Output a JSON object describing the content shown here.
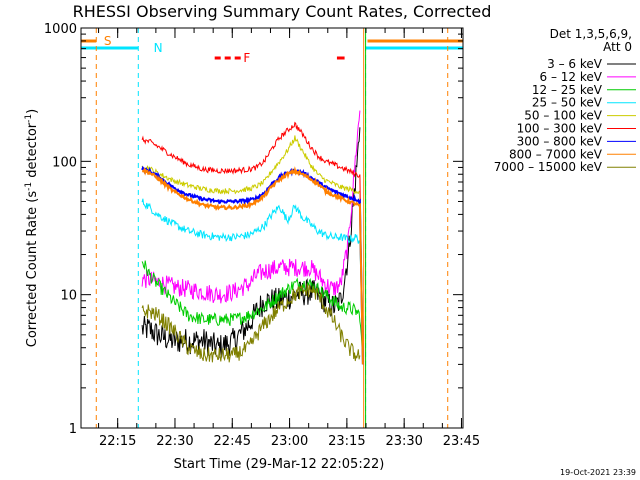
{
  "chart_data": {
    "type": "line",
    "title": "RHESSI Observing Summary Count Rates, Corrected",
    "xlabel": "Start Time (29-Mar-12 22:05:22)",
    "ylabel": "Corrected Count Rate (s⁻¹ detector⁻¹)",
    "ylabel_parts": {
      "main": "Corrected Count Rate (s",
      "sup1": "-1",
      "mid": " detector",
      "sup2": "-1",
      "end": ")"
    },
    "yscale": "log",
    "ylim": [
      1,
      1000
    ],
    "xlim_minutes": [
      0,
      100
    ],
    "x_unit": "minutes since 22:05:22",
    "y_ticks": [
      {
        "v": 1,
        "label": "1"
      },
      {
        "v": 10,
        "label": "10"
      },
      {
        "v": 100,
        "label": "100"
      },
      {
        "v": 1000,
        "label": "1000"
      }
    ],
    "x_ticks": [
      {
        "t": 9.6,
        "label": "22:15"
      },
      {
        "t": 24.6,
        "label": "22:30"
      },
      {
        "t": 39.6,
        "label": "22:45"
      },
      {
        "t": 54.6,
        "label": "23:00"
      },
      {
        "t": 69.6,
        "label": "23:15"
      },
      {
        "t": 84.6,
        "label": "23:30"
      },
      {
        "t": 99.6,
        "label": "23:45"
      }
    ],
    "legend_title": [
      "Det 1,3,5,6,9,",
      "Att 0"
    ],
    "series": [
      {
        "name": "3 - 6 keV",
        "label": "3 – 6 keV",
        "color": "#000000",
        "x": [
          16,
          18,
          20,
          24,
          28,
          32,
          36,
          40,
          44,
          46,
          48,
          52,
          56,
          60,
          62,
          64,
          66,
          68,
          70,
          72,
          73
        ],
        "values": [
          5.5,
          5.5,
          5,
          4.5,
          4.5,
          4.5,
          4,
          4.5,
          6,
          7.5,
          9,
          9,
          10,
          10.5,
          10,
          9,
          8,
          9,
          20,
          80,
          180
        ]
      },
      {
        "name": "6 - 12 keV",
        "label": "6 – 12 keV",
        "color": "#ff00ff",
        "x": [
          16,
          18,
          20,
          24,
          28,
          32,
          36,
          40,
          44,
          46,
          48,
          52,
          56,
          60,
          62,
          64,
          66,
          68,
          70,
          72,
          73
        ],
        "values": [
          13,
          13,
          12.5,
          11.5,
          11,
          10.5,
          10,
          10.5,
          12,
          14,
          15,
          16,
          16,
          16,
          14,
          12,
          11,
          12,
          25,
          120,
          240
        ]
      },
      {
        "name": "12 - 25 keV",
        "label": "12 – 25 keV",
        "color": "#00cc00",
        "x": [
          16,
          18,
          20,
          24,
          28,
          32,
          36,
          40,
          44,
          46,
          48,
          52,
          56,
          60,
          62,
          64,
          66,
          68,
          70,
          72,
          73,
          73.8
        ],
        "values": [
          18,
          14,
          12,
          9,
          7,
          6.5,
          6.5,
          6.5,
          7,
          7.5,
          8,
          10,
          12,
          12,
          11,
          10,
          9,
          8,
          8,
          7.5,
          7,
          3
        ]
      },
      {
        "name": "25 - 50 keV",
        "label": "25 – 50 keV",
        "color": "#00e5ff",
        "x": [
          16,
          18,
          20,
          24,
          28,
          32,
          36,
          40,
          44,
          46,
          48,
          50,
          52,
          54,
          56,
          58,
          60,
          62,
          64,
          66,
          68,
          70,
          72,
          73,
          73.8
        ],
        "values": [
          50,
          45,
          40,
          34,
          30,
          28,
          27,
          27,
          28,
          30,
          33,
          40,
          46,
          36,
          46,
          38,
          34,
          30,
          28,
          27,
          27,
          26,
          27,
          25,
          3
        ]
      },
      {
        "name": "50 - 100 keV",
        "label": "50 – 100 keV",
        "color": "#cccc00",
        "x": [
          16,
          18,
          20,
          24,
          28,
          32,
          36,
          40,
          44,
          46,
          48,
          50,
          52,
          54,
          56,
          58,
          60,
          62,
          64,
          66,
          68,
          70,
          72,
          73,
          73.8
        ],
        "values": [
          92,
          88,
          82,
          72,
          66,
          62,
          60,
          60,
          62,
          65,
          70,
          85,
          100,
          120,
          150,
          120,
          95,
          80,
          72,
          68,
          64,
          62,
          60,
          58,
          3
        ]
      },
      {
        "name": "100 - 300 keV",
        "label": "100 – 300 keV",
        "color": "#ff0000",
        "x": [
          16,
          18,
          20,
          24,
          28,
          32,
          36,
          40,
          44,
          46,
          48,
          50,
          52,
          54,
          56,
          58,
          60,
          62,
          64,
          66,
          68,
          70,
          72,
          73,
          73.8
        ],
        "values": [
          145,
          140,
          130,
          110,
          95,
          87,
          85,
          85,
          87,
          90,
          100,
          125,
          150,
          170,
          190,
          160,
          130,
          110,
          100,
          95,
          90,
          85,
          80,
          78,
          3
        ]
      },
      {
        "name": "300 - 800 keV",
        "label": "300 – 800 keV",
        "color": "#0000ff",
        "x": [
          16,
          18,
          20,
          24,
          28,
          32,
          36,
          40,
          44,
          46,
          48,
          50,
          52,
          54,
          56,
          58,
          60,
          62,
          64,
          66,
          68,
          70,
          72,
          73,
          73.8
        ],
        "values": [
          88,
          84,
          78,
          64,
          56,
          52,
          50,
          50,
          51,
          53,
          58,
          68,
          76,
          82,
          85,
          82,
          76,
          70,
          64,
          60,
          57,
          54,
          52,
          50,
          3
        ]
      },
      {
        "name": "800 - 7000 keV",
        "label": "800 – 7000 keV",
        "color": "#ff8000",
        "x": [
          16,
          18,
          20,
          24,
          28,
          32,
          36,
          40,
          44,
          46,
          48,
          50,
          52,
          54,
          56,
          58,
          60,
          62,
          64,
          66,
          68,
          70,
          72,
          73,
          73.8
        ],
        "values": [
          86,
          82,
          75,
          60,
          52,
          47,
          45,
          45,
          47,
          50,
          55,
          65,
          73,
          80,
          84,
          80,
          74,
          68,
          60,
          56,
          53,
          50,
          48,
          46,
          3
        ]
      },
      {
        "name": "7000 - 15000 keV",
        "label": "7000 – 15000 keV",
        "color": "#808000",
        "x": [
          16,
          18,
          20,
          24,
          28,
          32,
          36,
          40,
          44,
          46,
          48,
          52,
          56,
          60,
          62,
          64,
          66,
          68,
          70,
          72,
          73
        ],
        "values": [
          7.5,
          7.5,
          7,
          5.5,
          4,
          3.5,
          3.5,
          3.5,
          4,
          5,
          6,
          8,
          10,
          11,
          10,
          8,
          6.5,
          5,
          4,
          3.5,
          3.5
        ]
      }
    ],
    "markers": {
      "saa_label": "S",
      "night_label": "N",
      "flare_label": "F",
      "saa_bars": [
        {
          "start": 0,
          "end": 4
        },
        {
          "start": 75,
          "end": 100
        }
      ],
      "night_bars": [
        {
          "start": 0,
          "end": 15
        },
        {
          "start": 74.5,
          "end": 100
        }
      ],
      "flare_bars": [
        {
          "start": 35,
          "end": 42
        },
        {
          "start": 67,
          "end": 69
        }
      ],
      "saa_lines": [
        4,
        96
      ],
      "night_lines": [
        15,
        74.5
      ],
      "transition_lines": [
        74,
        74.5
      ]
    }
  },
  "footer": {
    "timestamp": "19-Oct-2021 23:39"
  }
}
